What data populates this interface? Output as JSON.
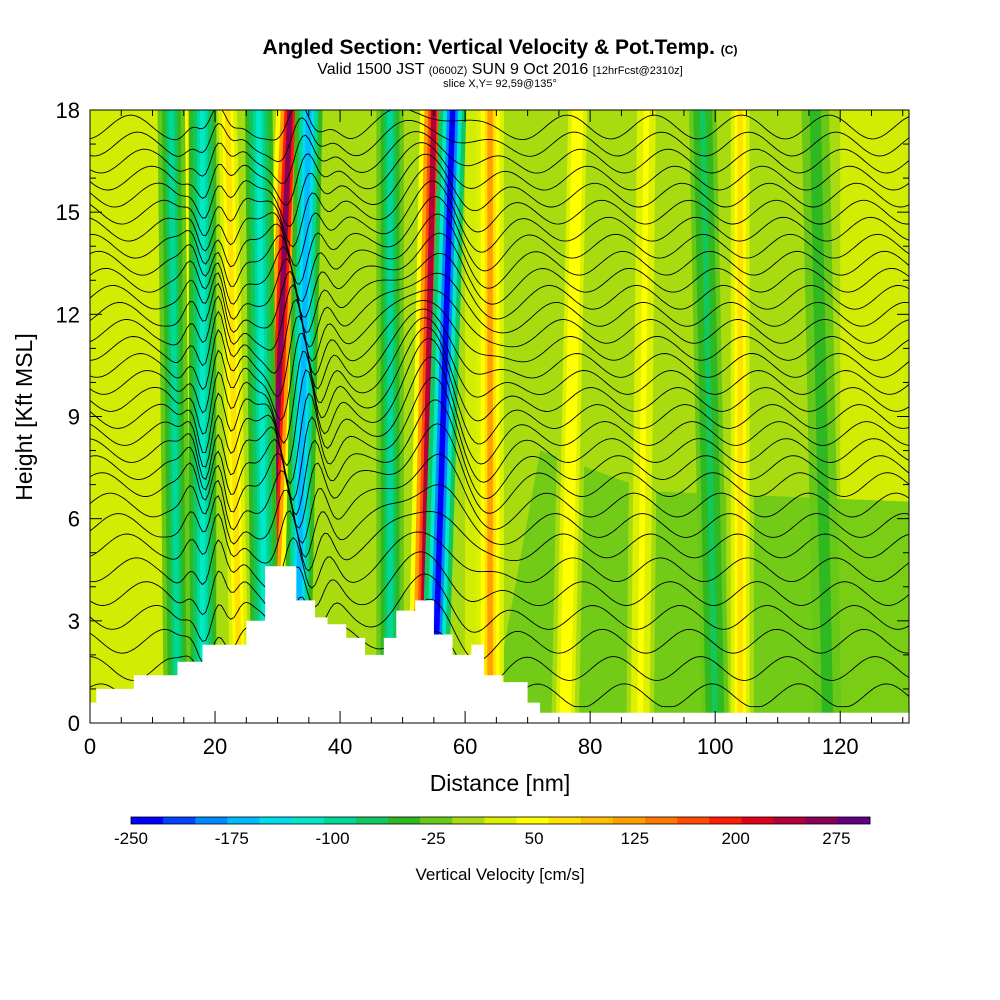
{
  "header": {
    "title": "Angled Section: Vertical Velocity & Pot.Temp.",
    "title_suffix": "(C)",
    "valid_prefix": "Valid 1500 JST",
    "valid_utc": "(0600Z)",
    "valid_date": "SUN 9 Oct 2016",
    "forecast": "[12hrFcst@2310z]",
    "slice": "slice X,Y= 92,59@135°"
  },
  "chart_data": {
    "type": "heatmap",
    "xlabel": "Distance [nm]",
    "ylabel": "Height [Kft MSL]",
    "xlim": [
      0,
      131
    ],
    "ylim": [
      0,
      18
    ],
    "x_ticks": [
      0,
      20,
      40,
      60,
      80,
      100,
      120
    ],
    "y_ticks": [
      0,
      3,
      6,
      9,
      12,
      15,
      18
    ],
    "terrain_height_kft": [
      [
        0,
        0.6
      ],
      [
        1,
        1.0
      ],
      [
        7,
        1.4
      ],
      [
        12,
        1.4
      ],
      [
        14,
        1.8
      ],
      [
        18,
        2.3
      ],
      [
        22,
        2.3
      ],
      [
        25,
        3.0
      ],
      [
        28,
        4.6
      ],
      [
        31,
        4.6
      ],
      [
        33,
        3.6
      ],
      [
        36,
        3.1
      ],
      [
        38,
        2.9
      ],
      [
        41,
        2.5
      ],
      [
        44,
        2.0
      ],
      [
        47,
        2.5
      ],
      [
        49,
        3.3
      ],
      [
        52,
        3.6
      ],
      [
        55,
        2.6
      ],
      [
        58,
        2.0
      ],
      [
        61,
        2.3
      ],
      [
        63,
        1.4
      ],
      [
        66,
        1.2
      ],
      [
        70,
        0.6
      ],
      [
        72,
        0.3
      ],
      [
        131,
        0.3
      ]
    ],
    "updrafts": [
      {
        "x_top": 32,
        "x_bottom": 28,
        "w": 280
      },
      {
        "x_top": 55,
        "x_bottom": 53,
        "w": 260
      },
      {
        "x_top": 64,
        "x_bottom": 64,
        "w": 130
      },
      {
        "x_top": 22,
        "x_bottom": 24,
        "w": 90
      },
      {
        "x_top": 16,
        "x_bottom": 17,
        "w": 80
      },
      {
        "x_top": 104,
        "x_bottom": 104,
        "w": 90
      },
      {
        "x_top": 78,
        "x_bottom": 76,
        "w": 70
      },
      {
        "x_top": 89,
        "x_bottom": 88,
        "w": 55
      }
    ],
    "downdrafts": [
      {
        "x_top": 35,
        "x_bottom": 33,
        "w": -170
      },
      {
        "x_top": 58,
        "x_bottom": 55,
        "w": -240
      },
      {
        "x_top": 18,
        "x_bottom": 18,
        "w": -120
      },
      {
        "x_top": 27,
        "x_bottom": 28,
        "w": -110
      },
      {
        "x_top": 13,
        "x_bottom": 14,
        "w": -80
      },
      {
        "x_top": 48,
        "x_bottom": 48,
        "w": -80
      },
      {
        "x_top": 98,
        "x_bottom": 100,
        "w": -60
      },
      {
        "x_top": 116,
        "x_bottom": 118,
        "w": -50
      }
    ],
    "theta_contours_c": [
      {
        "h": 0.8
      },
      {
        "h": 1.6
      },
      {
        "h": 2.4
      },
      {
        "h": 3.1
      },
      {
        "h": 3.8
      },
      {
        "h": 4.5
      },
      {
        "h": 5.2
      },
      {
        "h": 5.8
      },
      {
        "h": 6.4
      },
      {
        "h": 7.0
      },
      {
        "h": 7.5
      },
      {
        "h": 8.0
      },
      {
        "h": 8.5
      },
      {
        "h": 9.0
      },
      {
        "h": 9.5
      },
      {
        "h": 10.0
      },
      {
        "h": 10.5
      },
      {
        "h": 11.0
      },
      {
        "h": 11.5
      },
      {
        "h": 12.0
      },
      {
        "h": 12.5
      },
      {
        "h": 13.0
      },
      {
        "h": 13.5
      },
      {
        "h": 14.0
      },
      {
        "h": 14.5
      },
      {
        "h": 15.0
      },
      {
        "h": 15.5
      },
      {
        "h": 16.0
      },
      {
        "h": 16.5
      },
      {
        "h": 17.0
      },
      {
        "h": 17.5
      }
    ],
    "colorbar": {
      "title": "Vertical Velocity [cm/s]",
      "min": -250,
      "max": 300,
      "step": 25,
      "tick_labels": [
        "-250",
        "-175",
        "-100",
        "-25",
        "50",
        "125",
        "200",
        "275"
      ],
      "colors": [
        "#0000ff",
        "#0044ff",
        "#0088ff",
        "#00bbff",
        "#00ddee",
        "#00e8c8",
        "#00d898",
        "#10c860",
        "#30b820",
        "#68c818",
        "#a8dc10",
        "#ddf000",
        "#ffff00",
        "#ffe000",
        "#ffc000",
        "#ffa000",
        "#ff7800",
        "#ff4c00",
        "#ff1c00",
        "#e00018",
        "#b40038",
        "#8a0058",
        "#600080"
      ]
    }
  }
}
